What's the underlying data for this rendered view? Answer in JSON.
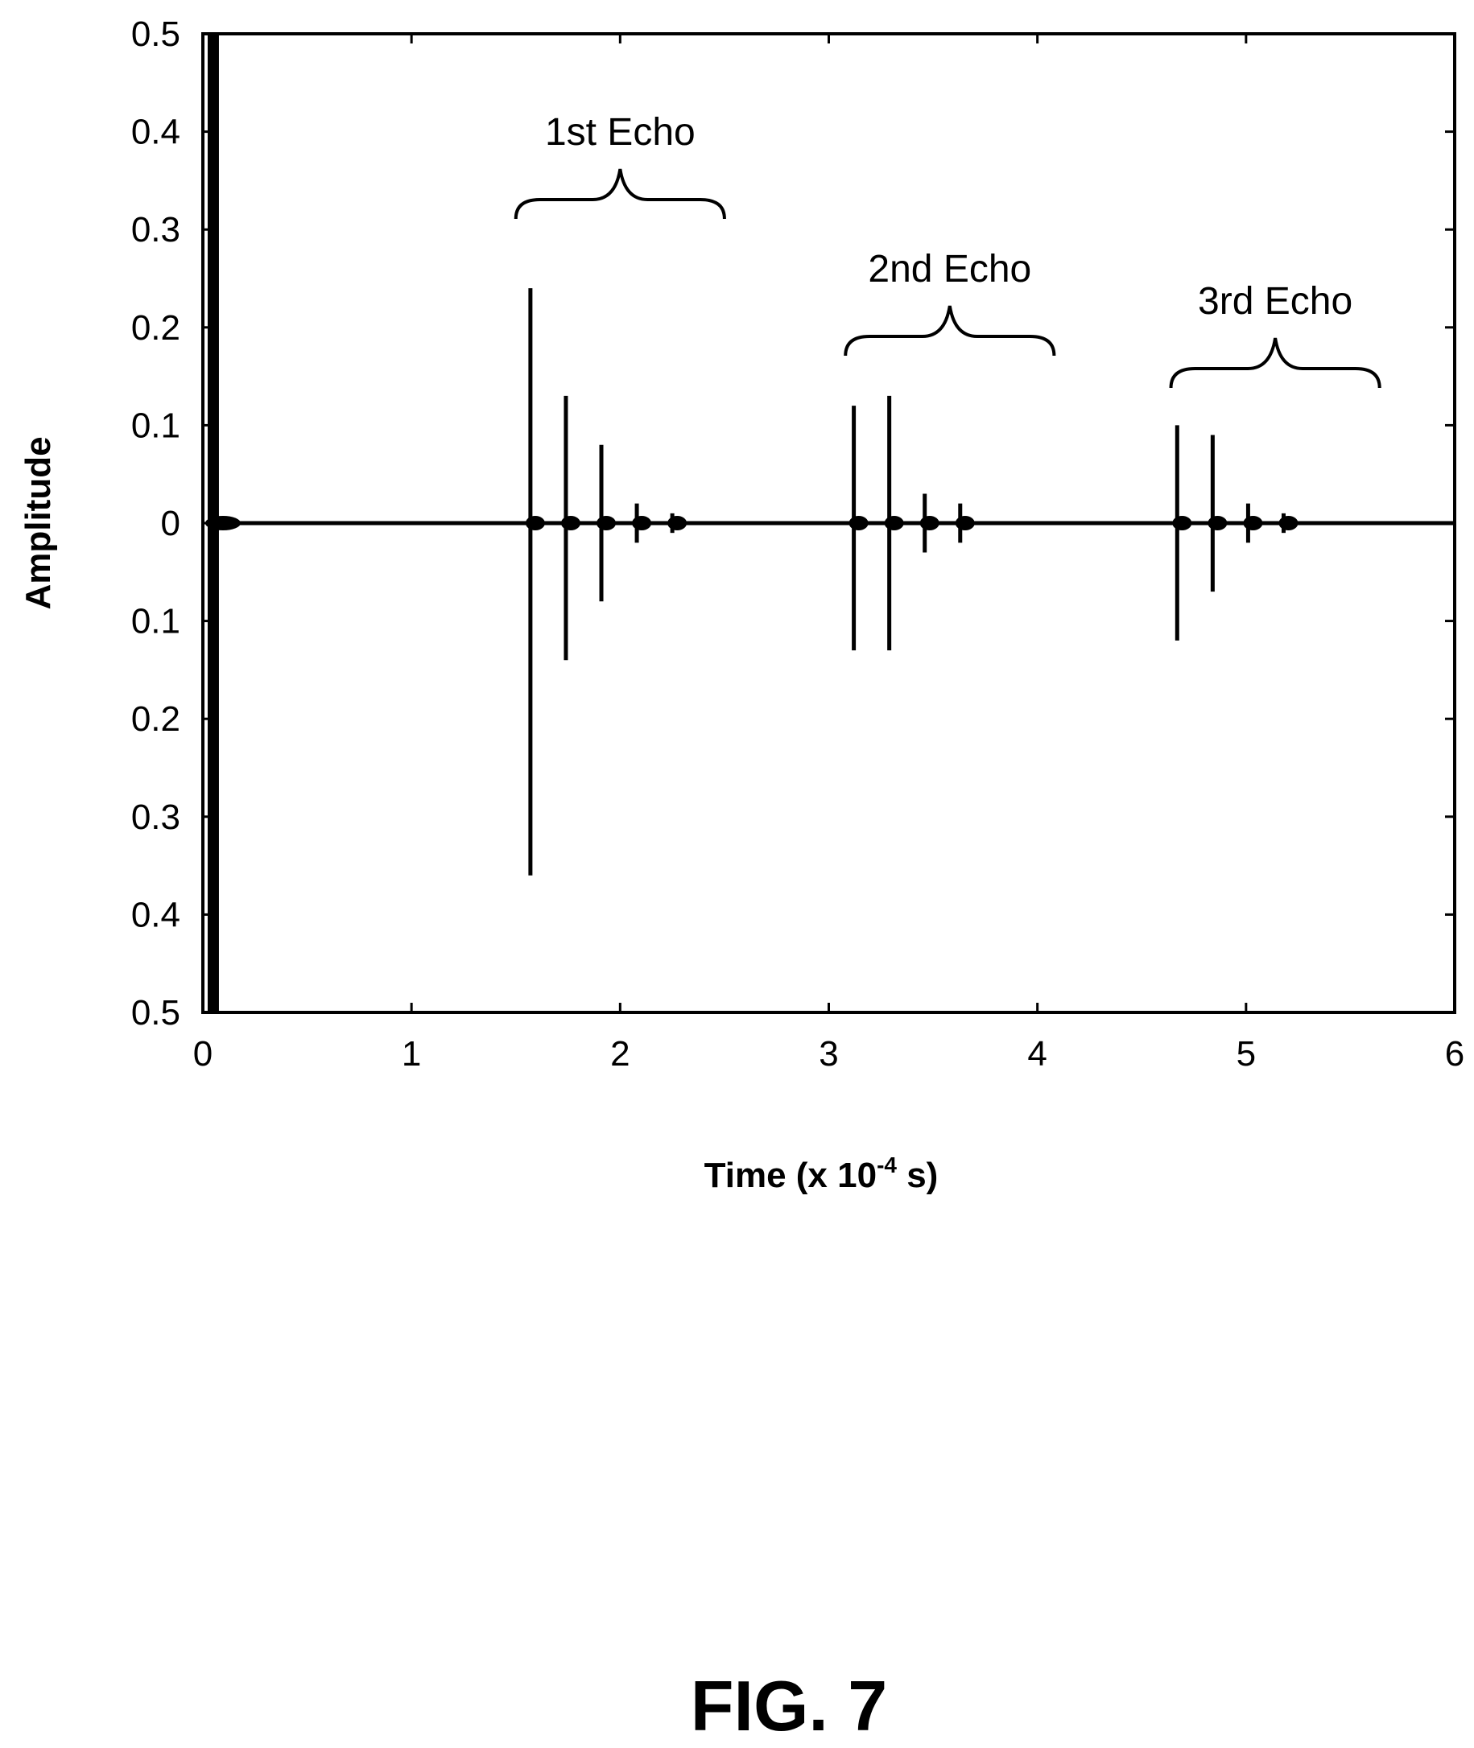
{
  "chart_data": {
    "type": "line",
    "title": "",
    "xlabel": "Time (x 10",
    "xlabel_sup": "-4",
    "xlabel_suffix": " s)",
    "ylabel": "Amplitude",
    "xlim": [
      0,
      6
    ],
    "ylim": [
      -0.5,
      0.5
    ],
    "x_ticks": [
      0,
      1,
      2,
      3,
      4,
      5,
      6
    ],
    "x_tick_labels": [
      "0",
      "1",
      "2",
      "3",
      "4",
      "5",
      "6"
    ],
    "y_ticks": [
      0.5,
      0.4,
      0.3,
      0.2,
      0.1,
      0,
      -0.1,
      -0.2,
      -0.3,
      -0.4,
      -0.5
    ],
    "y_tick_labels": [
      "0.5",
      "0.4",
      "0.3",
      "0.2",
      "0.1",
      "0",
      "0.1",
      "0.2",
      "0.3",
      "0.4",
      "0.5"
    ],
    "grid": false,
    "series": [
      {
        "pulses": [
          {
            "t": 0.05,
            "max": 0.5,
            "min": -0.5
          },
          {
            "t": 1.57,
            "max": 0.24,
            "min": -0.36
          },
          {
            "t": 1.74,
            "max": 0.13,
            "min": -0.14
          },
          {
            "t": 1.91,
            "max": 0.08,
            "min": -0.08
          },
          {
            "t": 2.08,
            "max": 0.02,
            "min": -0.02
          },
          {
            "t": 2.25,
            "max": 0.01,
            "min": -0.01
          },
          {
            "t": 3.12,
            "max": 0.12,
            "min": -0.13
          },
          {
            "t": 3.29,
            "max": 0.13,
            "min": -0.13
          },
          {
            "t": 3.46,
            "max": 0.03,
            "min": -0.03
          },
          {
            "t": 3.63,
            "max": 0.02,
            "min": -0.02
          },
          {
            "t": 4.67,
            "max": 0.1,
            "min": -0.12
          },
          {
            "t": 4.84,
            "max": 0.09,
            "min": -0.07
          },
          {
            "t": 5.01,
            "max": 0.02,
            "min": -0.02
          },
          {
            "t": 5.18,
            "max": 0.01,
            "min": -0.01
          }
        ]
      }
    ],
    "annotations": [
      {
        "text": "1st Echo",
        "x_from": 1.5,
        "x_to": 2.5
      },
      {
        "text": "2nd Echo",
        "x_from": 3.08,
        "x_to": 4.08
      },
      {
        "text": "3rd Echo",
        "x_from": 4.64,
        "x_to": 5.64
      }
    ]
  },
  "figure_label": "FIG. 7"
}
